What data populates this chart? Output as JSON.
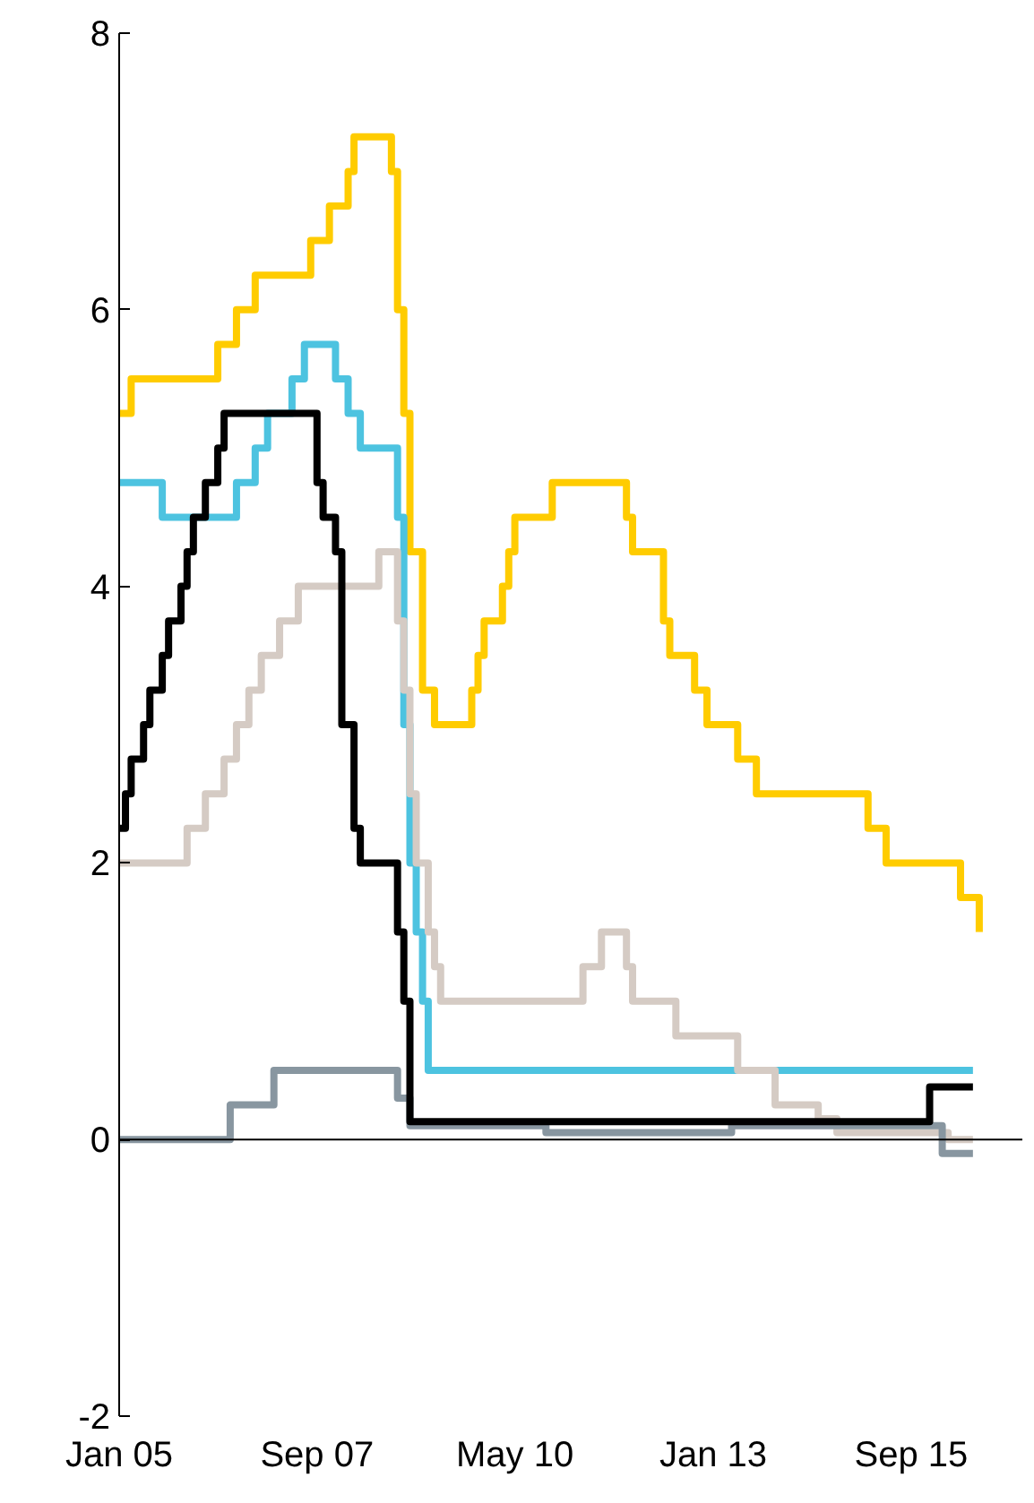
{
  "chart_data": {
    "type": "step",
    "xlim": [
      "2005-01",
      "2017-03"
    ],
    "xticks": [
      {
        "value": "2005-01",
        "label": "Jan 05"
      },
      {
        "value": "2007-09",
        "label": "Sep 07"
      },
      {
        "value": "2010-05",
        "label": "May 10"
      },
      {
        "value": "2013-01",
        "label": "Jan 13"
      },
      {
        "value": "2015-09",
        "label": "Sep 15"
      }
    ],
    "ylim": [
      -2,
      8
    ],
    "yticks": [
      -2,
      0,
      2,
      4,
      6,
      8
    ],
    "grid": false,
    "line_style": "solid",
    "marker": "none",
    "ref_lines": [
      {
        "axis": "y",
        "value": 0,
        "color": "#000000"
      }
    ],
    "series": [
      {
        "color": "#ffcc00",
        "x": [
          "2005-01",
          "2005-03",
          "2006-05",
          "2006-08",
          "2006-11",
          "2007-08",
          "2007-11",
          "2008-02",
          "2008-03",
          "2008-09",
          "2008-10",
          "2008-11",
          "2008-12",
          "2009-02",
          "2009-04",
          "2009-10",
          "2009-11",
          "2009-12",
          "2010-03",
          "2010-04",
          "2010-05",
          "2010-11",
          "2011-11",
          "2011-12",
          "2012-05",
          "2012-06",
          "2012-10",
          "2012-12",
          "2013-05",
          "2013-08",
          "2015-02",
          "2015-05",
          "2016-05",
          "2016-08"
        ],
        "values": [
          5.25,
          5.5,
          5.75,
          6.0,
          6.25,
          6.5,
          6.75,
          7.0,
          7.25,
          7.0,
          6.0,
          5.25,
          4.25,
          3.25,
          3.0,
          3.25,
          3.5,
          3.75,
          4.0,
          4.25,
          4.5,
          4.75,
          4.5,
          4.25,
          3.75,
          3.5,
          3.25,
          3.0,
          2.75,
          2.5,
          2.25,
          2.0,
          1.75,
          1.5
        ]
      },
      {
        "color": "#4dc3e0",
        "x": [
          "2005-01",
          "2005-08",
          "2006-08",
          "2006-11",
          "2007-01",
          "2007-05",
          "2007-07",
          "2007-12",
          "2008-02",
          "2008-04",
          "2008-10",
          "2008-11",
          "2008-12",
          "2009-01",
          "2009-02",
          "2009-03",
          "2016-07"
        ],
        "values": [
          4.75,
          4.5,
          4.75,
          5.0,
          5.25,
          5.5,
          5.75,
          5.5,
          5.25,
          5.0,
          4.5,
          3.0,
          2.0,
          1.5,
          1.0,
          0.5,
          0.5
        ]
      },
      {
        "color": "#d5cbc4",
        "x": [
          "2005-01",
          "2005-12",
          "2006-03",
          "2006-06",
          "2006-08",
          "2006-10",
          "2006-12",
          "2007-03",
          "2007-06",
          "2008-07",
          "2008-10",
          "2008-11",
          "2008-12",
          "2009-01",
          "2009-03",
          "2009-04",
          "2009-05",
          "2011-04",
          "2011-07",
          "2011-11",
          "2011-12",
          "2012-07",
          "2013-05",
          "2013-11",
          "2014-06",
          "2014-09",
          "2016-03",
          "2016-07"
        ],
        "values": [
          2.0,
          2.25,
          2.5,
          2.75,
          3.0,
          3.25,
          3.5,
          3.75,
          4.0,
          4.25,
          3.75,
          3.25,
          2.5,
          2.0,
          1.5,
          1.25,
          1.0,
          1.25,
          1.5,
          1.25,
          1.0,
          0.75,
          0.5,
          0.25,
          0.15,
          0.05,
          0.0,
          0.0
        ]
      },
      {
        "color": "#8896a0",
        "x": [
          "2005-01",
          "2006-07",
          "2007-02",
          "2008-10",
          "2008-12",
          "2010-10",
          "2013-04",
          "2016-02",
          "2016-07"
        ],
        "values": [
          0.0,
          0.25,
          0.5,
          0.3,
          0.1,
          0.05,
          0.1,
          -0.1,
          -0.1
        ]
      },
      {
        "color": "#000000",
        "x": [
          "2005-01",
          "2005-02",
          "2005-03",
          "2005-05",
          "2005-06",
          "2005-08",
          "2005-09",
          "2005-11",
          "2005-12",
          "2006-01",
          "2006-03",
          "2006-05",
          "2006-06",
          "2007-09",
          "2007-10",
          "2007-12",
          "2008-01",
          "2008-03",
          "2008-04",
          "2008-10",
          "2008-11",
          "2008-12",
          "2015-12",
          "2016-07"
        ],
        "values": [
          2.25,
          2.5,
          2.75,
          3.0,
          3.25,
          3.5,
          3.75,
          4.0,
          4.25,
          4.5,
          4.75,
          5.0,
          5.25,
          4.75,
          4.5,
          4.25,
          3.0,
          2.25,
          2.0,
          1.5,
          1.0,
          0.13,
          0.38,
          0.38
        ]
      }
    ]
  }
}
